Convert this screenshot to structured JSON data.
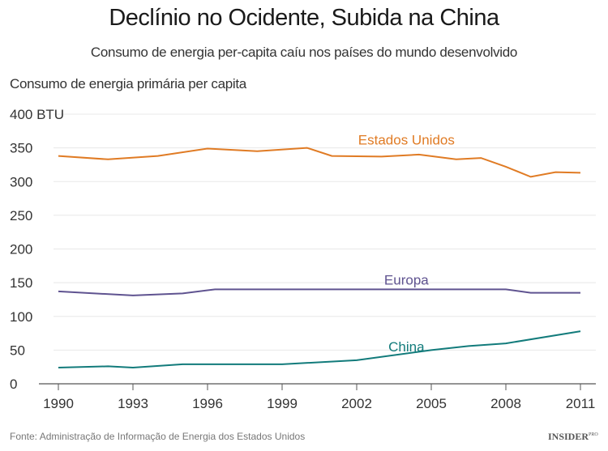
{
  "chart_data": {
    "type": "line",
    "title": "Declínio no Ocidente, Subida na China",
    "subtitle": "Consumo de energia per-capita caíu nos países do mundo desenvolvido",
    "ylabel": "Consumo de energia primária per capita",
    "xlabel": "",
    "xlim": [
      1990,
      2011
    ],
    "ylim": [
      0,
      400
    ],
    "x_ticks": [
      "1990",
      "1993",
      "1996",
      "1999",
      "2002",
      "2005",
      "2008",
      "2011"
    ],
    "y_ticks": [
      "0",
      "50",
      "100",
      "150",
      "200",
      "250",
      "300",
      "350",
      "400 BTU"
    ],
    "y_tick_values": [
      0,
      50,
      100,
      150,
      200,
      250,
      300,
      350,
      400
    ],
    "grid": true,
    "legend": "inline labels",
    "series": [
      {
        "name": "Estados Unidos",
        "color": "#e07b24",
        "points": [
          [
            1990,
            338
          ],
          [
            1992,
            333
          ],
          [
            1994,
            338
          ],
          [
            1996,
            349
          ],
          [
            1998,
            345
          ],
          [
            2000,
            350
          ],
          [
            2001,
            338
          ],
          [
            2003,
            337
          ],
          [
            2004.5,
            340
          ],
          [
            2006,
            333
          ],
          [
            2007,
            335
          ],
          [
            2008,
            322
          ],
          [
            2009,
            307
          ],
          [
            2010,
            314
          ],
          [
            2011,
            313
          ]
        ]
      },
      {
        "name": "Europa",
        "color": "#5f5390",
        "points": [
          [
            1990,
            137
          ],
          [
            1993,
            131
          ],
          [
            1995,
            134
          ],
          [
            1996.3,
            140
          ],
          [
            2008,
            140
          ],
          [
            2009,
            135
          ],
          [
            2011,
            135
          ]
        ]
      },
      {
        "name": "China",
        "color": "#127b7b",
        "points": [
          [
            1990,
            24
          ],
          [
            1992,
            26
          ],
          [
            1993,
            24
          ],
          [
            1995,
            29
          ],
          [
            1999,
            29
          ],
          [
            2002,
            35
          ],
          [
            2005,
            50
          ],
          [
            2006.5,
            56
          ],
          [
            2008,
            60
          ],
          [
            2011,
            78
          ]
        ]
      }
    ]
  },
  "footer": {
    "source": "Fonte: Administração de Informação de Energia dos Estados Unidos",
    "logo": "INSIDER",
    "logo_sup": "PRO"
  }
}
